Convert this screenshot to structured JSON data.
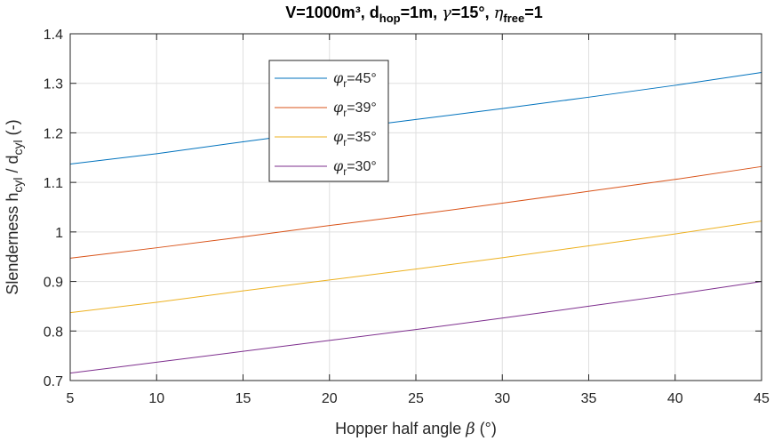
{
  "chart_data": {
    "type": "line",
    "title": {
      "parts": [
        "V=1000m³, d",
        "hop",
        "=1m, ",
        "γ",
        "=15°, ",
        "η",
        "free",
        "=1"
      ]
    },
    "xlabel": {
      "text": "Hopper half angle ",
      "symbol": "β",
      "unit": " (°)"
    },
    "ylabel": {
      "main": "Slenderness h",
      "sub1": "cyl",
      "mid": " / d",
      "sub2": "cyl",
      "unit": " (-)"
    },
    "xlim": [
      5,
      45
    ],
    "ylim": [
      0.7,
      1.4
    ],
    "xticks": [
      5,
      10,
      15,
      20,
      25,
      30,
      35,
      40,
      45
    ],
    "yticks": [
      0.7,
      0.8,
      0.9,
      1.0,
      1.1,
      1.2,
      1.3,
      1.4
    ],
    "ytick_labels": [
      "0.7",
      "0.8",
      "0.9",
      "1",
      "1.1",
      "1.2",
      "1.3",
      "1.4"
    ],
    "grid": true,
    "legend_position": "top-center",
    "series": [
      {
        "name": "45°",
        "symbol": "φ",
        "sub": "r",
        "color": "#0072BD",
        "x": [
          5,
          10,
          15,
          20,
          25,
          30,
          35,
          40,
          45
        ],
        "y": [
          1.137,
          1.158,
          1.182,
          1.205,
          1.227,
          1.249,
          1.272,
          1.296,
          1.322
        ]
      },
      {
        "name": "39°",
        "symbol": "φ",
        "sub": "r",
        "color": "#D95319",
        "x": [
          5,
          10,
          15,
          20,
          25,
          30,
          35,
          40,
          45
        ],
        "y": [
          0.947,
          0.968,
          0.99,
          1.013,
          1.035,
          1.058,
          1.082,
          1.106,
          1.132
        ]
      },
      {
        "name": "35°",
        "symbol": "φ",
        "sub": "r",
        "color": "#EDB120",
        "x": [
          5,
          10,
          15,
          20,
          25,
          30,
          35,
          40,
          45
        ],
        "y": [
          0.837,
          0.858,
          0.881,
          0.903,
          0.925,
          0.948,
          0.972,
          0.996,
          1.022
        ]
      },
      {
        "name": "30°",
        "symbol": "φ",
        "sub": "r",
        "color": "#7E2F8E",
        "x": [
          5,
          10,
          15,
          20,
          25,
          30,
          35,
          40,
          45
        ],
        "y": [
          0.715,
          0.737,
          0.759,
          0.781,
          0.803,
          0.826,
          0.85,
          0.874,
          0.9
        ]
      }
    ]
  }
}
